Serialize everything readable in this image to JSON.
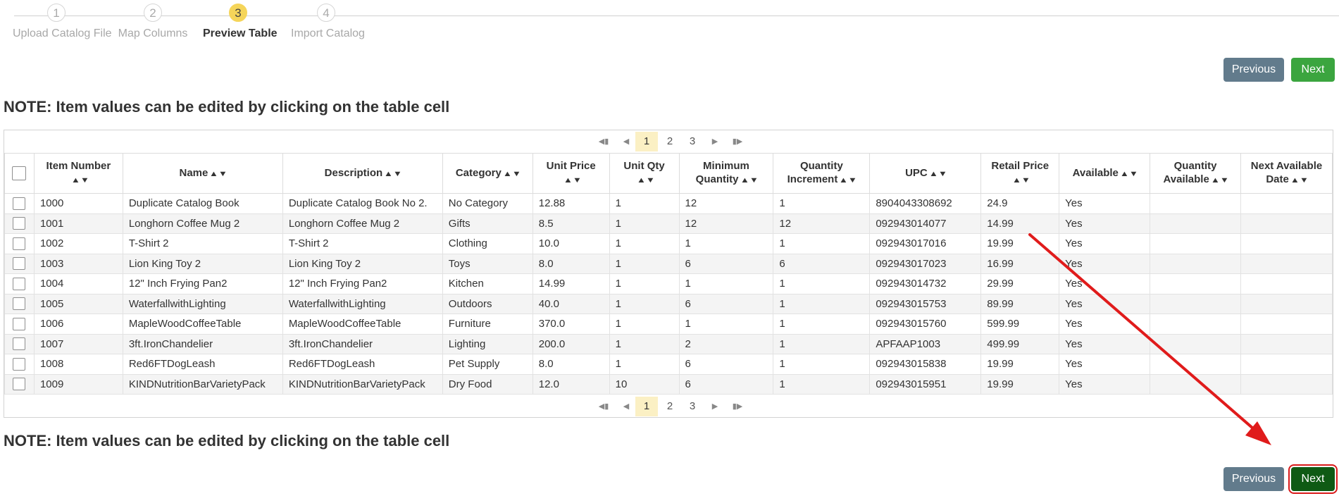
{
  "stepper": {
    "steps": [
      {
        "number": "1",
        "label": "Upload Catalog File"
      },
      {
        "number": "2",
        "label": "Map Columns"
      },
      {
        "number": "3",
        "label": "Preview Table"
      },
      {
        "number": "4",
        "label": "Import Catalog"
      }
    ],
    "active_step": 3
  },
  "buttons": {
    "previous_label": "Previous",
    "next_label": "Next"
  },
  "note_text": "NOTE: Item values can be edited by clicking on the table cell",
  "pagination": {
    "first_icon": "first-page-icon",
    "prev_icon": "prev-page-icon",
    "next_icon": "next-page-icon",
    "last_icon": "last-page-icon",
    "pages": [
      "1",
      "2",
      "3"
    ],
    "current_page": "1"
  },
  "table": {
    "columns": [
      {
        "label": "Item Number"
      },
      {
        "label": "Name"
      },
      {
        "label": "Description"
      },
      {
        "label": "Category"
      },
      {
        "label": "Unit Price"
      },
      {
        "label": "Unit Qty"
      },
      {
        "label": "Minimum Quantity"
      },
      {
        "label": "Quantity Increment"
      },
      {
        "label": "UPC"
      },
      {
        "label": "Retail Price"
      },
      {
        "label": "Available"
      },
      {
        "label": "Quantity Available"
      },
      {
        "label": "Next Available Date"
      }
    ],
    "rows": [
      [
        "1000",
        "Duplicate Catalog Book",
        "Duplicate Catalog Book No 2.",
        "No Category",
        "12.88",
        "1",
        "12",
        "1",
        "8904043308692",
        "24.9",
        "Yes",
        "",
        ""
      ],
      [
        "1001",
        "Longhorn Coffee Mug 2",
        "Longhorn Coffee Mug 2",
        "Gifts",
        "8.5",
        "1",
        "12",
        "12",
        "092943014077",
        "14.99",
        "Yes",
        "",
        ""
      ],
      [
        "1002",
        "T-Shirt 2",
        "T-Shirt 2",
        "Clothing",
        "10.0",
        "1",
        "1",
        "1",
        "092943017016",
        "19.99",
        "Yes",
        "",
        ""
      ],
      [
        "1003",
        "Lion King Toy 2",
        "Lion King Toy 2",
        "Toys",
        "8.0",
        "1",
        "6",
        "6",
        "092943017023",
        "16.99",
        "Yes",
        "",
        ""
      ],
      [
        "1004",
        "12\" Inch Frying Pan2",
        "12\" Inch Frying Pan2",
        "Kitchen",
        "14.99",
        "1",
        "1",
        "1",
        "092943014732",
        "29.99",
        "Yes",
        "",
        ""
      ],
      [
        "1005",
        "WaterfallwithLighting",
        "WaterfallwithLighting",
        "Outdoors",
        "40.0",
        "1",
        "6",
        "1",
        "092943015753",
        "89.99",
        "Yes",
        "",
        ""
      ],
      [
        "1006",
        "MapleWoodCoffeeTable",
        "MapleWoodCoffeeTable",
        "Furniture",
        "370.0",
        "1",
        "1",
        "1",
        "092943015760",
        "599.99",
        "Yes",
        "",
        ""
      ],
      [
        "1007",
        "3ft.IronChandelier",
        "3ft.IronChandelier",
        "Lighting",
        "200.0",
        "1",
        "2",
        "1",
        "APFAAP1003",
        "499.99",
        "Yes",
        "",
        ""
      ],
      [
        "1008",
        "Red6FTDogLeash",
        "Red6FTDogLeash",
        "Pet Supply",
        "8.0",
        "1",
        "6",
        "1",
        "092943015838",
        "19.99",
        "Yes",
        "",
        ""
      ],
      [
        "1009",
        "KINDNutritionBarVarietyPack",
        "KINDNutritionBarVarietyPack",
        "Dry Food",
        "12.0",
        "10",
        "6",
        "1",
        "092943015951",
        "19.99",
        "Yes",
        "",
        ""
      ]
    ]
  },
  "colors": {
    "active_step": "#f5d55a",
    "previous_button": "#627b8c",
    "next_button": "#3ba53f",
    "next_button_highlighted": "#0f5a14",
    "annotation": "#e01b1b"
  }
}
